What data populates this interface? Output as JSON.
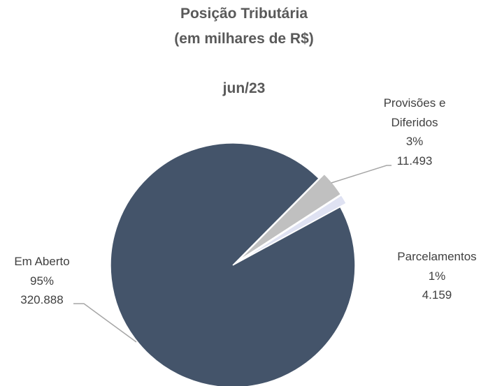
{
  "chart_data": {
    "type": "pie",
    "title": "Posição Tributária",
    "subtitle": "(em milhares de R$)",
    "period": "jun/23",
    "categories": [
      "Provisões e Diferidos",
      "Parcelamentos",
      "Em Aberto"
    ],
    "values": [
      11493,
      4159,
      320888
    ],
    "value_labels": [
      "11.493",
      "4.159",
      "320.888"
    ],
    "percentages": [
      3,
      1,
      95
    ],
    "percentage_labels": [
      "3%",
      "1%",
      "95%"
    ],
    "colors": [
      "#c0c0c0",
      "#dfe2f2",
      "#44546a"
    ]
  }
}
